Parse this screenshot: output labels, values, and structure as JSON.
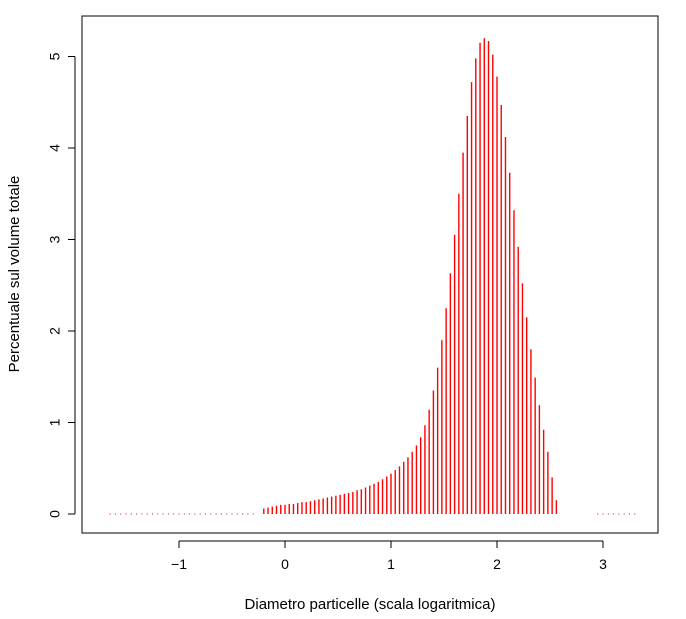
{
  "chart_data": {
    "type": "bar",
    "style": "vertical-histogram-lines",
    "color": "#ff0000",
    "xlabel": "Diametro particelle (scala logaritmica)",
    "ylabel": "Percentuale sul volume totale",
    "xlim": [
      -1.75,
      3.4
    ],
    "ylim": [
      0,
      5.25
    ],
    "xticks": [
      -1,
      0,
      1,
      2,
      3
    ],
    "xtick_labels": [
      "−1",
      "0",
      "1",
      "2",
      "3"
    ],
    "yticks": [
      0,
      1,
      2,
      3,
      4,
      5
    ],
    "ytick_labels": [
      "0",
      "1",
      "2",
      "3",
      "4",
      "5"
    ],
    "grid": false,
    "points": [
      {
        "x": -1.65,
        "y": 0.0
      },
      {
        "x": -1.6,
        "y": 0.0
      },
      {
        "x": -1.55,
        "y": 0.0
      },
      {
        "x": -1.5,
        "y": 0.0
      },
      {
        "x": -1.45,
        "y": 0.0
      },
      {
        "x": -1.4,
        "y": 0.0
      },
      {
        "x": -1.35,
        "y": 0.0
      },
      {
        "x": -1.3,
        "y": 0.0
      },
      {
        "x": -1.25,
        "y": 0.0
      },
      {
        "x": -1.2,
        "y": 0.0
      },
      {
        "x": -1.15,
        "y": 0.0
      },
      {
        "x": -1.1,
        "y": 0.0
      },
      {
        "x": -1.05,
        "y": 0.0
      },
      {
        "x": -1.0,
        "y": 0.0
      },
      {
        "x": -0.95,
        "y": 0.0
      },
      {
        "x": -0.9,
        "y": 0.0
      },
      {
        "x": -0.85,
        "y": 0.0
      },
      {
        "x": -0.8,
        "y": 0.0
      },
      {
        "x": -0.75,
        "y": 0.0
      },
      {
        "x": -0.7,
        "y": 0.0
      },
      {
        "x": -0.65,
        "y": 0.0
      },
      {
        "x": -0.6,
        "y": 0.0
      },
      {
        "x": -0.55,
        "y": 0.0
      },
      {
        "x": -0.5,
        "y": 0.0
      },
      {
        "x": -0.45,
        "y": 0.0
      },
      {
        "x": -0.4,
        "y": 0.0
      },
      {
        "x": -0.35,
        "y": 0.0
      },
      {
        "x": -0.3,
        "y": 0.0
      },
      {
        "x": -0.2,
        "y": 0.06
      },
      {
        "x": -0.16,
        "y": 0.07
      },
      {
        "x": -0.12,
        "y": 0.08
      },
      {
        "x": -0.08,
        "y": 0.09
      },
      {
        "x": -0.04,
        "y": 0.1
      },
      {
        "x": 0.0,
        "y": 0.1
      },
      {
        "x": 0.04,
        "y": 0.11
      },
      {
        "x": 0.08,
        "y": 0.11
      },
      {
        "x": 0.12,
        "y": 0.12
      },
      {
        "x": 0.16,
        "y": 0.13
      },
      {
        "x": 0.2,
        "y": 0.13
      },
      {
        "x": 0.24,
        "y": 0.14
      },
      {
        "x": 0.28,
        "y": 0.15
      },
      {
        "x": 0.32,
        "y": 0.16
      },
      {
        "x": 0.36,
        "y": 0.17
      },
      {
        "x": 0.4,
        "y": 0.18
      },
      {
        "x": 0.44,
        "y": 0.19
      },
      {
        "x": 0.48,
        "y": 0.2
      },
      {
        "x": 0.52,
        "y": 0.21
      },
      {
        "x": 0.56,
        "y": 0.22
      },
      {
        "x": 0.6,
        "y": 0.23
      },
      {
        "x": 0.64,
        "y": 0.24
      },
      {
        "x": 0.68,
        "y": 0.26
      },
      {
        "x": 0.72,
        "y": 0.27
      },
      {
        "x": 0.76,
        "y": 0.29
      },
      {
        "x": 0.8,
        "y": 0.31
      },
      {
        "x": 0.84,
        "y": 0.33
      },
      {
        "x": 0.88,
        "y": 0.35
      },
      {
        "x": 0.92,
        "y": 0.38
      },
      {
        "x": 0.96,
        "y": 0.41
      },
      {
        "x": 1.0,
        "y": 0.44
      },
      {
        "x": 1.04,
        "y": 0.48
      },
      {
        "x": 1.08,
        "y": 0.52
      },
      {
        "x": 1.12,
        "y": 0.57
      },
      {
        "x": 1.16,
        "y": 0.62
      },
      {
        "x": 1.2,
        "y": 0.68
      },
      {
        "x": 1.24,
        "y": 0.75
      },
      {
        "x": 1.28,
        "y": 0.84
      },
      {
        "x": 1.32,
        "y": 0.97
      },
      {
        "x": 1.36,
        "y": 1.14
      },
      {
        "x": 1.4,
        "y": 1.35
      },
      {
        "x": 1.44,
        "y": 1.6
      },
      {
        "x": 1.48,
        "y": 1.9
      },
      {
        "x": 1.52,
        "y": 2.25
      },
      {
        "x": 1.56,
        "y": 2.63
      },
      {
        "x": 1.6,
        "y": 3.05
      },
      {
        "x": 1.64,
        "y": 3.5
      },
      {
        "x": 1.68,
        "y": 3.95
      },
      {
        "x": 1.72,
        "y": 4.35
      },
      {
        "x": 1.76,
        "y": 4.72
      },
      {
        "x": 1.8,
        "y": 4.98
      },
      {
        "x": 1.84,
        "y": 5.15
      },
      {
        "x": 1.88,
        "y": 5.2
      },
      {
        "x": 1.92,
        "y": 5.17
      },
      {
        "x": 1.96,
        "y": 5.02
      },
      {
        "x": 2.0,
        "y": 4.78
      },
      {
        "x": 2.04,
        "y": 4.47
      },
      {
        "x": 2.08,
        "y": 4.12
      },
      {
        "x": 2.12,
        "y": 3.73
      },
      {
        "x": 2.16,
        "y": 3.32
      },
      {
        "x": 2.2,
        "y": 2.92
      },
      {
        "x": 2.24,
        "y": 2.52
      },
      {
        "x": 2.28,
        "y": 2.15
      },
      {
        "x": 2.32,
        "y": 1.8
      },
      {
        "x": 2.36,
        "y": 1.49
      },
      {
        "x": 2.4,
        "y": 1.19
      },
      {
        "x": 2.44,
        "y": 0.92
      },
      {
        "x": 2.48,
        "y": 0.68
      },
      {
        "x": 2.52,
        "y": 0.4
      },
      {
        "x": 2.56,
        "y": 0.15
      },
      {
        "x": 2.95,
        "y": 0.0
      },
      {
        "x": 3.0,
        "y": 0.0
      },
      {
        "x": 3.05,
        "y": 0.0
      },
      {
        "x": 3.1,
        "y": 0.0
      },
      {
        "x": 3.15,
        "y": 0.0
      },
      {
        "x": 3.2,
        "y": 0.0
      },
      {
        "x": 3.25,
        "y": 0.0
      },
      {
        "x": 3.3,
        "y": 0.0
      }
    ]
  }
}
